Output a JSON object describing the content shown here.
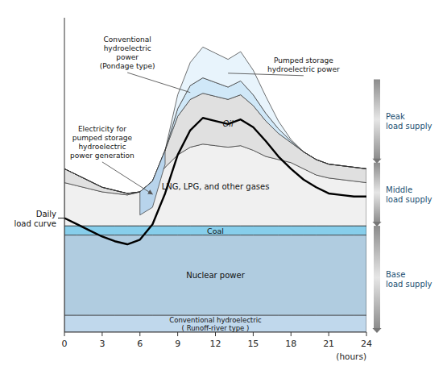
{
  "chart_data": {
    "type": "area",
    "stacked": true,
    "x_label": "(hours)",
    "x": [
      0,
      1,
      2,
      3,
      4,
      5,
      6,
      7,
      8,
      9,
      10,
      11,
      12,
      13,
      14,
      15,
      16,
      17,
      18,
      19,
      20,
      21,
      22,
      23,
      24
    ],
    "xlim": [
      0,
      24
    ],
    "xticks": [
      0,
      3,
      6,
      9,
      12,
      15,
      18,
      21,
      24
    ],
    "ylim": [
      0,
      10.2
    ],
    "tick_labels": "x",
    "series": [
      {
        "name": "Conventional hydroelectric\n( Runoff-river type )",
        "type": "area",
        "color": "#c0d8ec",
        "values": [
          0.55,
          0.55,
          0.55,
          0.55,
          0.55,
          0.55,
          0.55,
          0.55,
          0.55,
          0.55,
          0.55,
          0.55,
          0.55,
          0.55,
          0.55,
          0.55,
          0.55,
          0.55,
          0.55,
          0.55,
          0.55,
          0.55,
          0.55,
          0.55,
          0.55
        ]
      },
      {
        "name": "Nuclear power",
        "type": "area",
        "color": "#b0cce0",
        "values": [
          2.6,
          2.6,
          2.6,
          2.6,
          2.6,
          2.6,
          2.6,
          2.6,
          2.6,
          2.6,
          2.6,
          2.6,
          2.6,
          2.6,
          2.6,
          2.6,
          2.6,
          2.6,
          2.6,
          2.6,
          2.6,
          2.6,
          2.6,
          2.6,
          2.6
        ]
      },
      {
        "name": "Coal",
        "type": "area",
        "color": "#87ceeb",
        "values": [
          0.3,
          0.3,
          0.3,
          0.3,
          0.3,
          0.3,
          0.3,
          0.3,
          0.3,
          0.3,
          0.3,
          0.3,
          0.3,
          0.3,
          0.3,
          0.3,
          0.3,
          0.3,
          0.3,
          0.3,
          0.3,
          0.3,
          0.3,
          0.3,
          0.3
        ]
      },
      {
        "name": "LNG, LPG, and other gases",
        "type": "area",
        "color": "#f0f0f0",
        "values": [
          1.4,
          1.3,
          1.2,
          1.1,
          1.05,
          1.0,
          1.1,
          1.4,
          1.9,
          2.3,
          2.55,
          2.65,
          2.6,
          2.55,
          2.6,
          2.45,
          2.25,
          2.15,
          2.05,
          1.85,
          1.65,
          1.55,
          1.5,
          1.45,
          1.4
        ]
      },
      {
        "name": "Oil",
        "type": "area",
        "color": "#e0e0e0",
        "values": [
          0.45,
          0.35,
          0.25,
          0.15,
          0.1,
          0.05,
          0.0,
          0.05,
          0.55,
          1.25,
          1.55,
          1.65,
          1.6,
          1.55,
          1.65,
          1.45,
          1.15,
          0.85,
          0.65,
          0.55,
          0.5,
          0.45,
          0.45,
          0.45,
          0.45
        ]
      },
      {
        "name": "Electricity for\npumped storage\nhydroelectric\npower generation",
        "type": "cutout",
        "color": "#b8d4ec",
        "values": [
          0.0,
          0.0,
          0.0,
          0.0,
          0.0,
          0.0,
          0.75,
          0.85,
          0.45,
          0.0,
          0.0,
          0.0,
          0.0,
          0.0,
          0.0,
          0.0,
          0.0,
          0.0,
          0.0,
          0.0,
          0.0,
          0.0,
          0.0,
          0.0,
          0.0
        ]
      },
      {
        "name": "Conventional\nhydroelectric\npower\n(Pondage type)",
        "type": "area",
        "color": "#d0e8f8",
        "values": [
          0.0,
          0.0,
          0.0,
          0.0,
          0.0,
          0.0,
          0.0,
          0.0,
          0.0,
          0.25,
          0.45,
          0.5,
          0.45,
          0.4,
          0.45,
          0.35,
          0.25,
          0.15,
          0.05,
          0.0,
          0.0,
          0.0,
          0.0,
          0.0,
          0.0
        ]
      },
      {
        "name": "Pumped storage\nhydroelectric power",
        "type": "area",
        "color": "#e8f4fc",
        "values": [
          0.0,
          0.0,
          0.0,
          0.0,
          0.0,
          0.0,
          0.0,
          0.0,
          0.0,
          0.45,
          0.75,
          1.0,
          0.95,
          0.9,
          0.95,
          0.8,
          0.55,
          0.25,
          0.05,
          0.0,
          0.0,
          0.0,
          0.0,
          0.0,
          0.0
        ]
      },
      {
        "name": "Daily\nload curve",
        "type": "line",
        "color": "#000000",
        "values": [
          3.7,
          3.5,
          3.3,
          3.1,
          2.95,
          2.85,
          3.0,
          3.5,
          4.5,
          5.75,
          6.55,
          6.95,
          6.85,
          6.75,
          6.9,
          6.65,
          6.2,
          5.7,
          5.3,
          4.95,
          4.7,
          4.5,
          4.45,
          4.4,
          4.4
        ]
      }
    ],
    "supply_bands": [
      {
        "name": "Peak\nload supply",
        "low": 5.5,
        "high": 8.2
      },
      {
        "name": "Middle\nload supply",
        "low": 3.45,
        "high": 5.5
      },
      {
        "name": "Base\nload supply",
        "low": 0.0,
        "high": 3.45
      }
    ]
  }
}
